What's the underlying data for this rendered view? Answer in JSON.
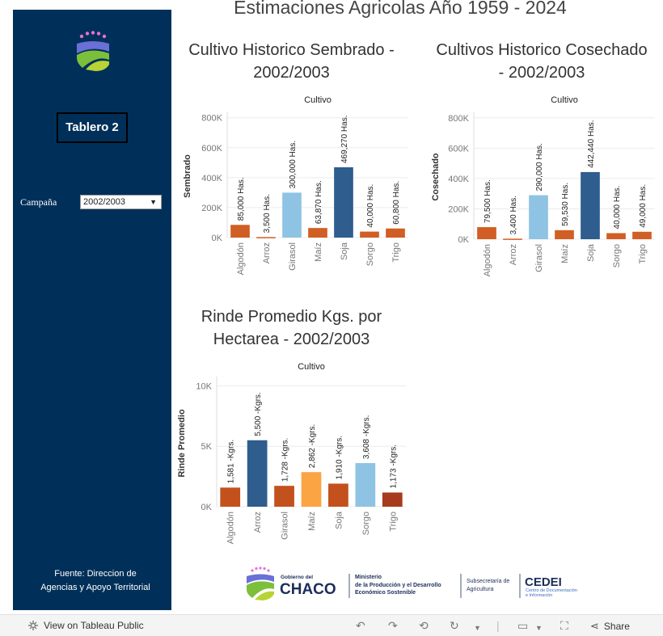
{
  "page_title": "Estimaciones Agricolas Año 1959 - 2024",
  "sidebar": {
    "button_label": "Tablero 2",
    "filter_label": "Campaña",
    "filter_value": "2002/2003",
    "source_line1": "Fuente: Direccion de",
    "source_line2": "Agencias y Apoyo Territorial"
  },
  "colors": {
    "sidebar_bg": "#003059",
    "orange": "#d15e24",
    "dark_orange": "#c3511e",
    "light_orange": "#fba443",
    "dark_blue": "#2e5d8e",
    "light_blue": "#8fc3e3",
    "brown_red": "#a63b1e",
    "grid": "#ececec"
  },
  "chart_data": [
    {
      "type": "bar",
      "title_line1": "Cultivo Historico Sembrado -",
      "title_line2": "2002/2003",
      "header": "Cultivo",
      "ylabel": "Sembrado",
      "categories": [
        "Algodón",
        "Arroz",
        "Girasol",
        "Maíz",
        "Soja",
        "Sorgo",
        "Trigo"
      ],
      "values": [
        85000,
        3500,
        300000,
        63870,
        469270,
        40000,
        60800
      ],
      "labels": [
        "85,000 Has.",
        "3,500 Has.",
        "300,000 Has.",
        "63,870 Has.",
        "469,270 Has.",
        "40,000 Has.",
        "60,800 Has."
      ],
      "bar_colors": [
        "#d15e24",
        "#d15e24",
        "#8fc3e3",
        "#d15e24",
        "#2e5d8e",
        "#d15e24",
        "#d15e24"
      ],
      "yticks": [
        0,
        200000,
        400000,
        600000,
        800000
      ],
      "ytick_labels": [
        "0K",
        "200K",
        "400K",
        "600K",
        "800K"
      ],
      "ylim": [
        0,
        820000
      ]
    },
    {
      "type": "bar",
      "title_line1": "Cultivos Historico Cosechado",
      "title_line2": "- 2002/2003",
      "header": "Cultivo",
      "ylabel": "Cosechado",
      "categories": [
        "Algodón",
        "Arroz",
        "Girasol",
        "Maíz",
        "Soja",
        "Sorgo",
        "Trigo"
      ],
      "values": [
        79500,
        3400,
        290000,
        59530,
        442440,
        40000,
        49000
      ],
      "labels": [
        "79,500 Has.",
        "3,400 Has.",
        "290,000 Has.",
        "59,530 Has.",
        "442,440 Has.",
        "40,000 Has.",
        "49,000 Has."
      ],
      "bar_colors": [
        "#d15e24",
        "#d15e24",
        "#8fc3e3",
        "#d15e24",
        "#2e5d8e",
        "#d15e24",
        "#d15e24"
      ],
      "yticks": [
        0,
        200000,
        400000,
        600000,
        800000
      ],
      "ytick_labels": [
        "0K",
        "200K",
        "400K",
        "600K",
        "800K"
      ],
      "ylim": [
        0,
        820000
      ]
    },
    {
      "type": "bar",
      "title_line1": "Rinde Promedio Kgs. por",
      "title_line2": "Hectarea - 2002/2003",
      "header": "Cultivo",
      "ylabel": "Rinde Promedio",
      "categories": [
        "Algodón",
        "Arroz",
        "Girasol",
        "Maíz",
        "Soja",
        "Sorgo",
        "Trigo"
      ],
      "values": [
        1581,
        5500,
        1728,
        2862,
        1910,
        3608,
        1173
      ],
      "labels": [
        "1,581 -Kgrs.",
        "5,500 -Kgrs.",
        "1,728 -Kgrs.",
        "2,862 -Kgrs.",
        "1,910 -Kgrs.",
        "3,608 -Kgrs.",
        "1,173 -Kgrs."
      ],
      "bar_colors": [
        "#c3511e",
        "#2e5d8e",
        "#c3511e",
        "#fba443",
        "#c3511e",
        "#8fc3e3",
        "#a63b1e"
      ],
      "yticks": [
        0,
        5000,
        10000
      ],
      "ytick_labels": [
        "0K",
        "5K",
        "10K"
      ],
      "ylim": [
        0,
        10500
      ]
    }
  ],
  "footer": {
    "gobierno_small": "Gobierno del",
    "gobierno_big": "CHACO",
    "ministerio_1": "Ministerio",
    "ministerio_2": "de la Producción y el Desarrollo",
    "ministerio_3": "Económico Sostenible",
    "subsec_1": "Subsecretaría de",
    "subsec_2": "Agricultura",
    "cedei": "CEDEI",
    "cedei_1": "Centro de Documentación",
    "cedei_2": "e Información"
  },
  "toolbar": {
    "view_label": "View on Tableau Public",
    "share_label": "Share",
    "undo_icon": "undo-icon",
    "redo_icon": "redo-icon",
    "revert_icon": "revert-icon",
    "refresh_icon": "refresh-icon",
    "comment_icon": "comment-icon",
    "fullscreen_icon": "fullscreen-icon",
    "share_icon": "share-icon"
  }
}
